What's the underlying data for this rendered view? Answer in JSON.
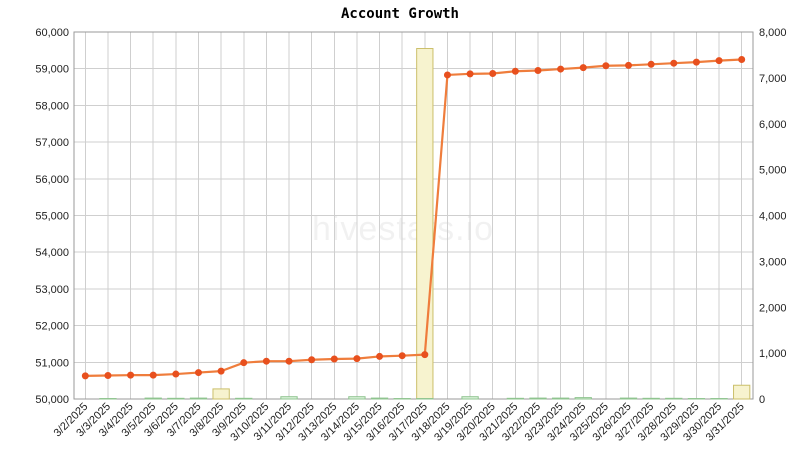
{
  "chart_data": {
    "type": "line",
    "title": "Account Growth",
    "watermark": "hivestats.io",
    "categories": [
      "3/2/2025",
      "3/3/2025",
      "3/4/2025",
      "3/5/2025",
      "3/6/2025",
      "3/7/2025",
      "3/8/2025",
      "3/9/2025",
      "3/10/2025",
      "3/11/2025",
      "3/12/2025",
      "3/13/2025",
      "3/14/2025",
      "3/15/2025",
      "3/16/2025",
      "3/17/2025",
      "3/18/2025",
      "3/19/2025",
      "3/20/2025",
      "3/21/2025",
      "3/22/2025",
      "3/23/2025",
      "3/24/2025",
      "3/25/2025",
      "3/26/2025",
      "3/27/2025",
      "3/28/2025",
      "3/29/2025",
      "3/30/2025",
      "3/31/2025"
    ],
    "y_left": {
      "min": 50000,
      "max": 60000,
      "ticks": [
        "50,000",
        "51,000",
        "52,000",
        "53,000",
        "54,000",
        "55,000",
        "56,000",
        "57,000",
        "58,000",
        "59,000",
        "60,000"
      ]
    },
    "y_right": {
      "min": 0,
      "max": 8000,
      "ticks": [
        "0",
        "1,000",
        "2,000",
        "3,000",
        "4,000",
        "5,000",
        "6,000",
        "7,000",
        "8,000"
      ]
    },
    "grid": true,
    "series": [
      {
        "kind": "line",
        "axis": "left",
        "color": "#ef7d3c",
        "marker_color": "#e8501e",
        "values": [
          50630,
          50640,
          50650,
          50650,
          50680,
          50720,
          50760,
          50990,
          51030,
          51030,
          51070,
          51090,
          51100,
          51160,
          51180,
          51210,
          58830,
          58860,
          58870,
          58930,
          58950,
          58990,
          59030,
          59080,
          59090,
          59120,
          59150,
          59180,
          59220,
          59250
        ]
      },
      {
        "kind": "bar",
        "axis": "right",
        "fill": "#f7f3cf",
        "stroke": "#cbbf6a",
        "values": [
          0,
          0,
          0,
          0,
          0,
          0,
          220,
          0,
          0,
          0,
          0,
          0,
          0,
          0,
          0,
          7640,
          0,
          0,
          0,
          0,
          0,
          0,
          0,
          0,
          0,
          0,
          0,
          0,
          0,
          300
        ]
      },
      {
        "kind": "bar",
        "axis": "right",
        "fill": "#ddf3dd",
        "stroke": "#8fc48f",
        "values": [
          0,
          10,
          0,
          20,
          15,
          20,
          0,
          15,
          0,
          50,
          0,
          0,
          50,
          20,
          10,
          10,
          0,
          50,
          0,
          15,
          20,
          20,
          30,
          0,
          20,
          15,
          15,
          10,
          10,
          0
        ]
      }
    ]
  }
}
